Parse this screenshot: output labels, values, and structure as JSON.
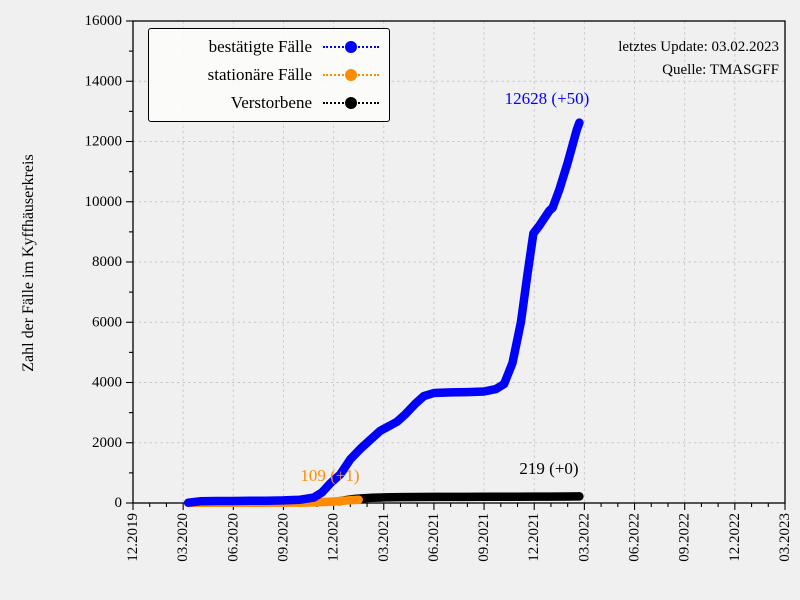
{
  "header": {
    "update_text": "letztes Update: 03.02.2023",
    "source_text": "Quelle: TMASGFF"
  },
  "chart_data": {
    "type": "line",
    "title": "",
    "xlabel": "",
    "ylabel": "Zahl der Fälle im Kyffhäuserkreis",
    "ylim": [
      0,
      16000
    ],
    "y_major_tick_step": 2000,
    "y_minor_tick_step": 1000,
    "y_tick_labels": [
      "0",
      "2000",
      "4000",
      "6000",
      "8000",
      "10000",
      "12000",
      "14000",
      "16000"
    ],
    "x_unit": "months since 12.2019",
    "xlim_months": [
      0,
      39
    ],
    "x_major_tick_step_months": 3,
    "x_minor_tick_step_months": 1,
    "x_tick_labels": [
      "12.2019",
      "03.2020",
      "06.2020",
      "09.2020",
      "12.2020",
      "03.2021",
      "06.2021",
      "09.2021",
      "12.2021",
      "03.2022",
      "06.2022",
      "09.2022",
      "12.2022",
      "03.2023"
    ],
    "grid": true,
    "grid_color": "#c7c7c7",
    "background_color": "#f0f0f0",
    "legend_position": "upper left",
    "series": [
      {
        "name": "bestätigte Fälle",
        "color": "#0000ff",
        "annotation": "12628 (+50)",
        "z": 3,
        "points": [
          [
            3.3,
            10
          ],
          [
            4,
            55
          ],
          [
            5,
            65
          ],
          [
            6,
            68
          ],
          [
            7,
            72
          ],
          [
            8,
            76
          ],
          [
            9,
            85
          ],
          [
            10,
            110
          ],
          [
            10.8,
            180
          ],
          [
            11.3,
            350
          ],
          [
            11.8,
            650
          ],
          [
            12.4,
            950
          ],
          [
            13,
            1450
          ],
          [
            13.6,
            1800
          ],
          [
            14.2,
            2100
          ],
          [
            14.8,
            2400
          ],
          [
            15.3,
            2550
          ],
          [
            15.8,
            2700
          ],
          [
            16.3,
            2950
          ],
          [
            16.9,
            3300
          ],
          [
            17.4,
            3550
          ],
          [
            18,
            3650
          ],
          [
            19,
            3670
          ],
          [
            20,
            3680
          ],
          [
            21,
            3700
          ],
          [
            21.7,
            3780
          ],
          [
            22.2,
            3950
          ],
          [
            22.7,
            4650
          ],
          [
            23.2,
            6000
          ],
          [
            23.6,
            7600
          ],
          [
            23.95,
            8950
          ],
          [
            24.3,
            9200
          ],
          [
            24.9,
            9700
          ],
          [
            25.1,
            9800
          ],
          [
            25.5,
            10400
          ],
          [
            26,
            11300
          ],
          [
            26.3,
            11900
          ],
          [
            26.55,
            12400
          ],
          [
            26.7,
            12628
          ]
        ]
      },
      {
        "name": "stationäre Fälle",
        "color": "#ff8c00",
        "annotation": "109 (+1)",
        "z": 2,
        "points": [
          [
            3.3,
            3
          ],
          [
            4,
            8
          ],
          [
            5,
            10
          ],
          [
            6,
            10
          ],
          [
            7,
            10
          ],
          [
            8,
            11
          ],
          [
            9,
            12
          ],
          [
            10,
            14
          ],
          [
            10.8,
            20
          ],
          [
            11.4,
            32
          ],
          [
            12,
            50
          ],
          [
            12.6,
            75
          ],
          [
            13.1,
            95
          ],
          [
            13.5,
            109
          ]
        ]
      },
      {
        "name": "Verstorbene",
        "color": "#000000",
        "annotation": "219 (+0)",
        "z": 1,
        "points": [
          [
            12.3,
            55
          ],
          [
            12.8,
            100
          ],
          [
            13.3,
            135
          ],
          [
            13.8,
            158
          ],
          [
            14.3,
            172
          ],
          [
            15,
            185
          ],
          [
            16,
            195
          ],
          [
            17,
            200
          ],
          [
            18,
            202
          ],
          [
            19,
            203
          ],
          [
            20,
            204
          ],
          [
            21,
            205
          ],
          [
            22,
            206
          ],
          [
            23,
            208
          ],
          [
            24,
            211
          ],
          [
            25,
            214
          ],
          [
            26,
            217
          ],
          [
            26.7,
            219
          ]
        ]
      }
    ]
  }
}
